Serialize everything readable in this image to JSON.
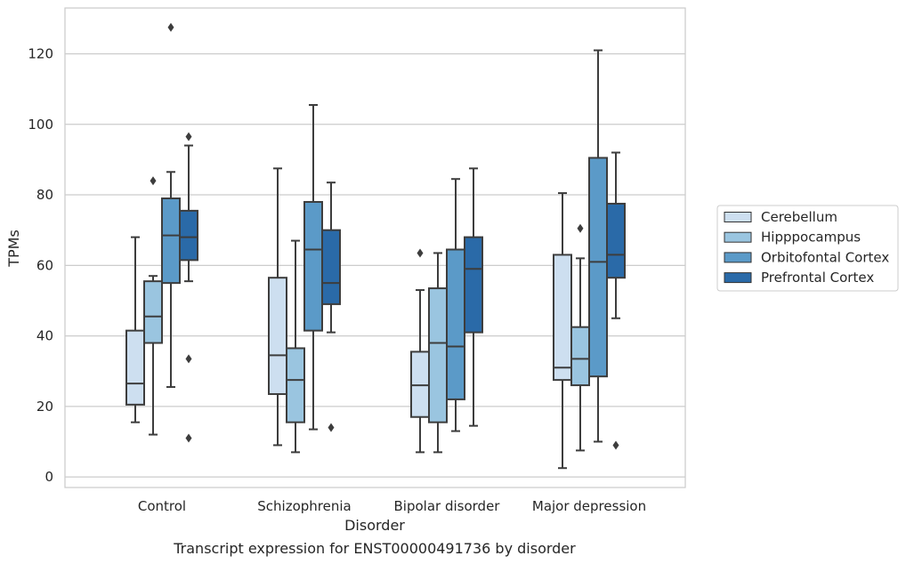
{
  "chart_data": {
    "type": "box",
    "caption": "Transcript expression for ENST00000491736 by disorder",
    "xlabel": "Disorder",
    "ylabel": "TPMs",
    "ylim": [
      -3,
      133
    ],
    "yticks": [
      0,
      20,
      40,
      60,
      80,
      100,
      120
    ],
    "grid": "horizontal",
    "legend_position": "right",
    "categories": [
      "Control",
      "Schizophrenia",
      "Bipolar disorder",
      "Major depression"
    ],
    "series": [
      {
        "name": "Cerebellum",
        "color": "#cddff0",
        "boxes": [
          {
            "whislo": 15.5,
            "q1": 20.5,
            "med": 26.5,
            "q3": 41.5,
            "whishi": 68,
            "fliers": []
          },
          {
            "whislo": 9,
            "q1": 23.5,
            "med": 34.5,
            "q3": 56.5,
            "whishi": 87.5,
            "fliers": []
          },
          {
            "whislo": 7,
            "q1": 17,
            "med": 26,
            "q3": 35.5,
            "whishi": 53,
            "fliers": [
              63.5
            ]
          },
          {
            "whislo": 2.5,
            "q1": 27.5,
            "med": 31,
            "q3": 63,
            "whishi": 80.5,
            "fliers": []
          }
        ]
      },
      {
        "name": "Hipppocampus",
        "color": "#9ac5e0",
        "boxes": [
          {
            "whislo": 12,
            "q1": 38,
            "med": 45.5,
            "q3": 55.5,
            "whishi": 57,
            "fliers": [
              84
            ]
          },
          {
            "whislo": 7,
            "q1": 15.5,
            "med": 27.5,
            "q3": 36.5,
            "whishi": 67,
            "fliers": []
          },
          {
            "whislo": 7,
            "q1": 15.5,
            "med": 38,
            "q3": 53.5,
            "whishi": 63.5,
            "fliers": []
          },
          {
            "whislo": 7.5,
            "q1": 26,
            "med": 33.5,
            "q3": 42.5,
            "whishi": 62,
            "fliers": [
              70.5
            ]
          }
        ]
      },
      {
        "name": "Orbitofontal Cortex",
        "color": "#5b9ac8",
        "boxes": [
          {
            "whislo": 25.5,
            "q1": 55,
            "med": 68.5,
            "q3": 79,
            "whishi": 86.5,
            "fliers": [
              127.5
            ]
          },
          {
            "whislo": 13.5,
            "q1": 41.5,
            "med": 64.5,
            "q3": 78,
            "whishi": 105.5,
            "fliers": []
          },
          {
            "whislo": 13,
            "q1": 22,
            "med": 37,
            "q3": 64.5,
            "whishi": 84.5,
            "fliers": []
          },
          {
            "whislo": 10,
            "q1": 28.5,
            "med": 61,
            "q3": 90.5,
            "whishi": 121,
            "fliers": []
          }
        ]
      },
      {
        "name": "Prefrontal Cortex",
        "color": "#2a6aa8",
        "boxes": [
          {
            "whislo": 55.5,
            "q1": 61.5,
            "med": 68,
            "q3": 75.5,
            "whishi": 94,
            "fliers": [
              96.5,
              33.5,
              11
            ]
          },
          {
            "whislo": 41,
            "q1": 49,
            "med": 55,
            "q3": 70,
            "whishi": 83.5,
            "fliers": [
              14
            ]
          },
          {
            "whislo": 14.5,
            "q1": 41,
            "med": 59,
            "q3": 68,
            "whishi": 87.5,
            "fliers": []
          },
          {
            "whislo": 45,
            "q1": 56.5,
            "med": 63,
            "q3": 77.5,
            "whishi": 92,
            "fliers": [
              9
            ]
          }
        ]
      }
    ]
  }
}
